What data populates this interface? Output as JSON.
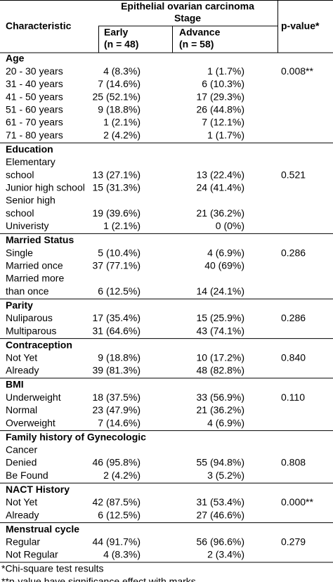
{
  "header": {
    "group": "Epithelial ovarian carcinoma",
    "stage": "Stage",
    "characteristic": "Characteristic",
    "p_value": "p-value*",
    "early": [
      "Early",
      "(n = 48)"
    ],
    "advance": [
      "Advance",
      "(n = 58)"
    ]
  },
  "sections": [
    {
      "title": "Age",
      "rows": [
        {
          "label": [
            "20 - 30 years"
          ],
          "early": "4 (8.3%)",
          "advance": "1 (1.7%)",
          "p": "0.008**"
        },
        {
          "label": [
            "31 - 40 years"
          ],
          "early": "7 (14.6%)",
          "advance": "6 (10.3%)"
        },
        {
          "label": [
            "41 - 50 years"
          ],
          "early": "25 (52.1%)",
          "advance": "17 (29.3%)"
        },
        {
          "label": [
            "51 - 60 years"
          ],
          "early": "9 (18.8%)",
          "advance": "26 (44.8%)"
        },
        {
          "label": [
            "61 - 70 years"
          ],
          "early": "1 (2.1%)",
          "advance": "7 (12.1%)"
        },
        {
          "label": [
            "71 - 80 years"
          ],
          "early": "2 (4.2%)",
          "advance": "1 (1.7%)"
        }
      ]
    },
    {
      "title": "Education",
      "rows": [
        {
          "label": [
            "Elementary",
            "school"
          ],
          "early": "13 (27.1%)",
          "advance": "13 (22.4%)",
          "p": "0.521"
        },
        {
          "label": [
            "Junior high school"
          ],
          "early": "15 (31.3%)",
          "advance": "24 (41.4%)"
        },
        {
          "label": [
            "Senior high",
            "school"
          ],
          "early": "19 (39.6%)",
          "advance": "21 (36.2%)"
        },
        {
          "label": [
            "Univeristy"
          ],
          "early": "1 (2.1%)",
          "advance": "0 (0%)"
        }
      ]
    },
    {
      "title": "Married Status",
      "rows": [
        {
          "label": [
            "Single"
          ],
          "early": "5 (10.4%)",
          "advance": "4 (6.9%)",
          "p": "0.286"
        },
        {
          "label": [
            "Married once"
          ],
          "early": "37 (77.1%)",
          "advance": "40 (69%)"
        },
        {
          "label": [
            "Married more",
            "than once"
          ],
          "early": "6 (12.5%)",
          "advance": "14 (24.1%)"
        }
      ]
    },
    {
      "title": "Parity",
      "rows": [
        {
          "label": [
            "Nuliparous"
          ],
          "early": "17 (35.4%)",
          "advance": "15 (25.9%)",
          "p": "0.286"
        },
        {
          "label": [
            "Multiparous"
          ],
          "early": "31 (64.6%)",
          "advance": "43 (74.1%)"
        }
      ]
    },
    {
      "title": "Contraception",
      "rows": [
        {
          "label": [
            "Not Yet"
          ],
          "early": "9 (18.8%)",
          "advance": "10 (17.2%)",
          "p": "0.840"
        },
        {
          "label": [
            "Already"
          ],
          "early": "39 (81.3%)",
          "advance": "48 (82.8%)"
        }
      ]
    },
    {
      "title": "BMI",
      "rows": [
        {
          "label": [
            "Underweight"
          ],
          "early": "18 (37.5%)",
          "advance": "33 (56.9%)",
          "p": "0.110"
        },
        {
          "label": [
            "Normal"
          ],
          "early": "23 (47.9%)",
          "advance": "21 (36.2%)"
        },
        {
          "label": [
            "Overweight"
          ],
          "early": "7 (14.6%)",
          "advance": "4 (6.9%)"
        }
      ]
    },
    {
      "title": "Family history of Gynecologic",
      "rows": [
        {
          "label": [
            "Cancer"
          ]
        },
        {
          "label": [
            "Denied"
          ],
          "early": "46 (95.8%)",
          "advance": "55 (94.8%)",
          "p": "0.808"
        },
        {
          "label": [
            "Be Found"
          ],
          "early": "2 (4.2%)",
          "advance": "3 (5.2%)"
        }
      ]
    },
    {
      "title": "NACT History",
      "rows": [
        {
          "label": [
            "Not Yet"
          ],
          "early": "42 (87.5%)",
          "advance": "31 (53.4%)",
          "p": "0.000**"
        },
        {
          "label": [
            "Already"
          ],
          "early": "6 (12.5%)",
          "advance": "27 (46.6%)"
        }
      ]
    },
    {
      "title": "Menstrual cycle",
      "rows": [
        {
          "label": [
            "Regular"
          ],
          "early": "44 (91.7%)",
          "advance": "56 (96.6%)",
          "p": "0.279"
        },
        {
          "label": [
            "Not Regular"
          ],
          "early": "4 (8.3%)",
          "advance": "2 (3.4%)"
        }
      ]
    }
  ],
  "footnotes": [
    "*Chi-square test results",
    "**p-value have significance effect with marks"
  ]
}
